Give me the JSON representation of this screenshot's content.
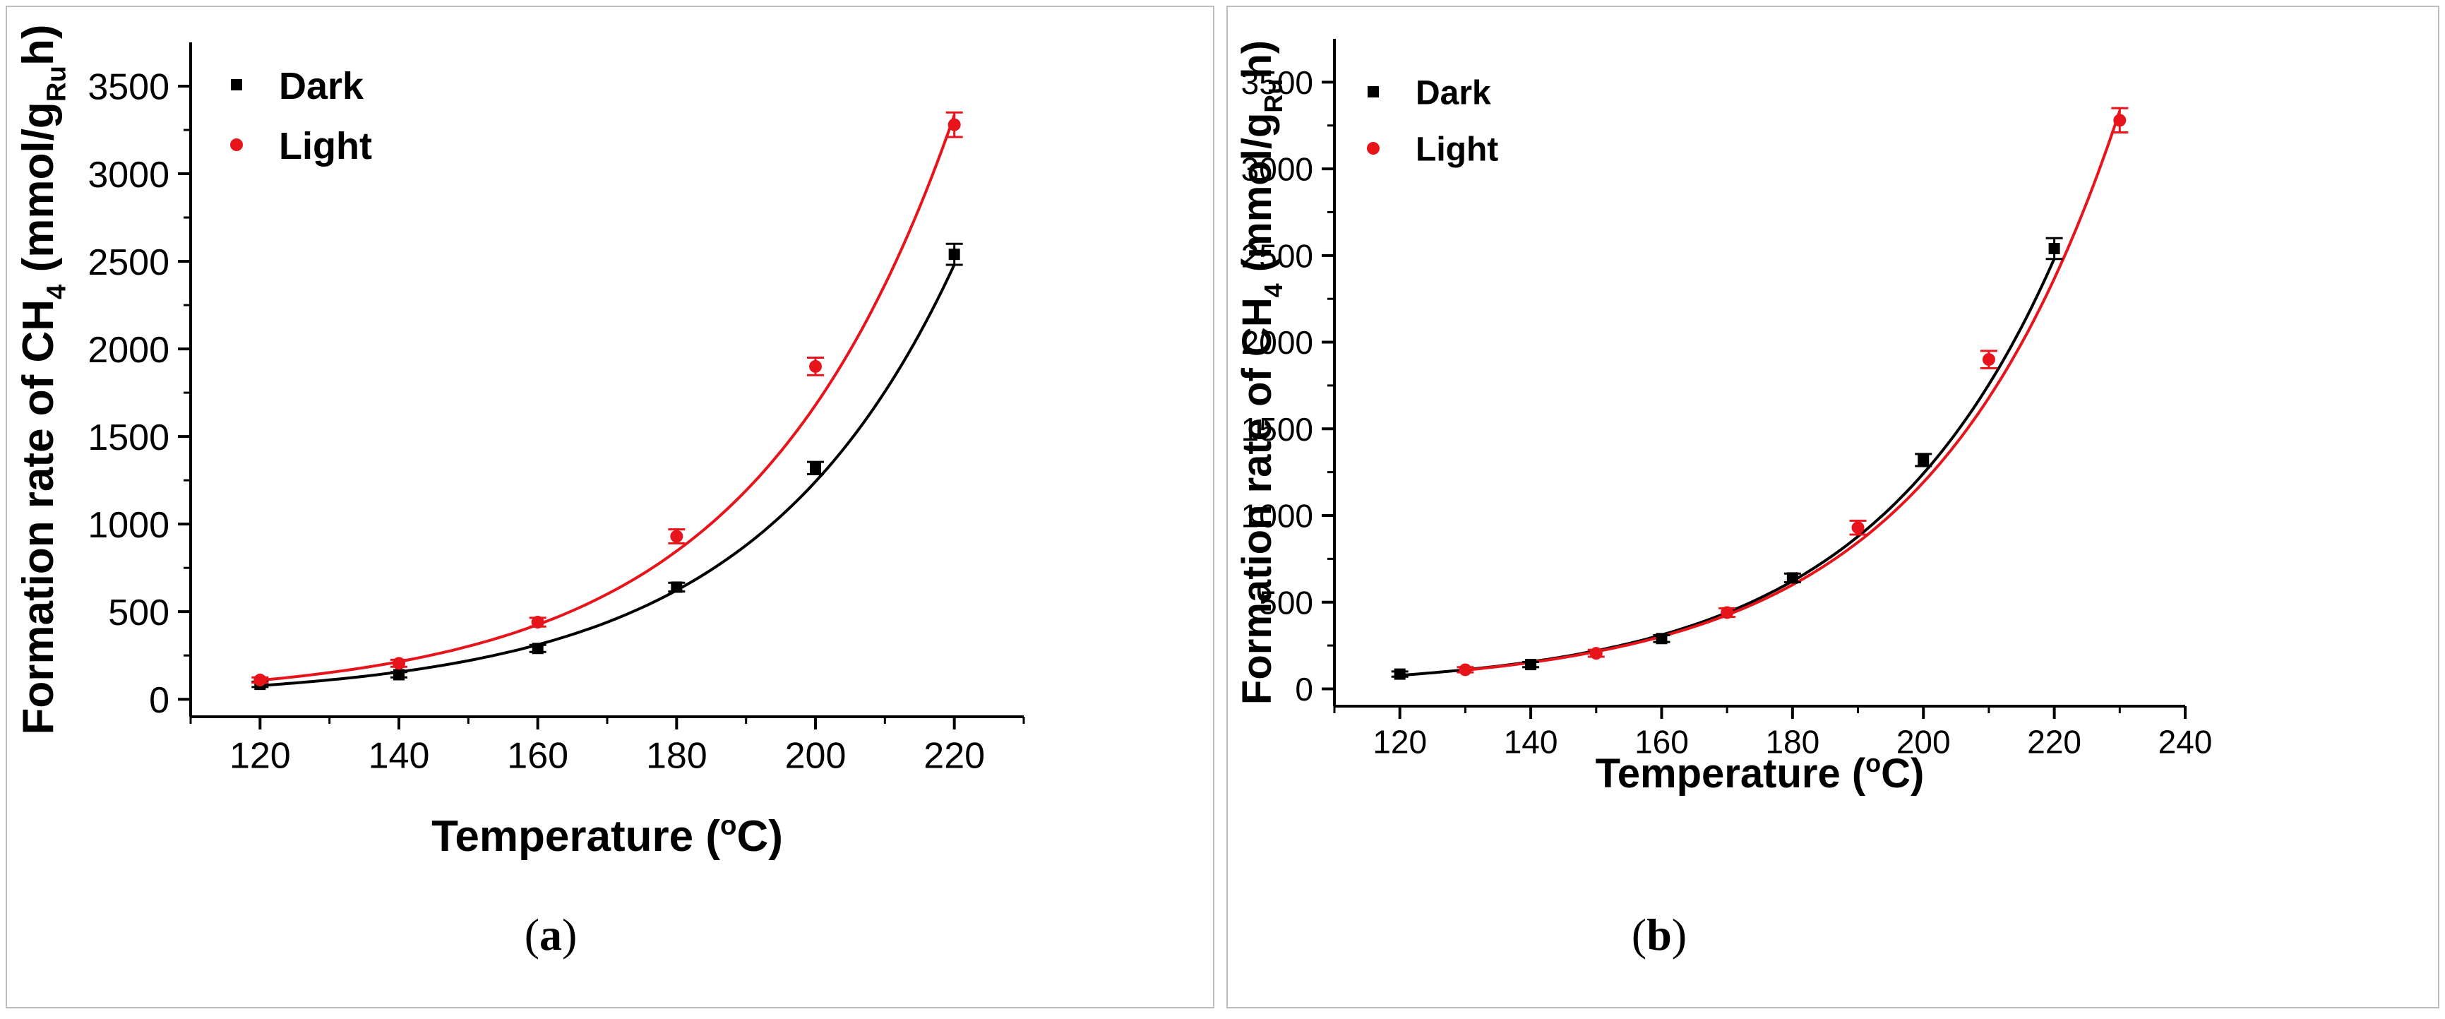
{
  "colors": {
    "dark": "#000000",
    "light": "#e8141b",
    "frame": "#bdbdbd"
  },
  "chart_data": [
    {
      "type": "scatter",
      "panel_label": "(a)",
      "xlabel": "Temperature (",
      "xlabel_sup": "o",
      "xlabel_tail": "C)",
      "ylabel_main": "Formation rate of CH",
      "ylabel_sub4": "4",
      "ylabel_mid": " (mmol/g",
      "ylabel_subRu": "Ru",
      "ylabel_end": "h)",
      "xlim": [
        110,
        230
      ],
      "ylim": [
        -100,
        3750
      ],
      "xticks": [
        120,
        140,
        160,
        180,
        200,
        220
      ],
      "yticks": [
        0,
        500,
        1000,
        1500,
        2000,
        2500,
        3000,
        3500
      ],
      "legend": [
        "Dark",
        "Light"
      ],
      "series": [
        {
          "name": "Dark",
          "x": [
            120,
            140,
            160,
            180,
            200,
            220
          ],
          "y": [
            85,
            140,
            290,
            640,
            1320,
            2540
          ],
          "err": [
            15,
            15,
            20,
            25,
            35,
            60
          ],
          "fit": {
            "a": 78,
            "b": 0.0346,
            "x0": 120,
            "x1": 220
          }
        },
        {
          "name": "Light",
          "x": [
            120,
            140,
            160,
            180,
            200,
            220
          ],
          "y": [
            110,
            205,
            440,
            930,
            1900,
            3280
          ],
          "err": [
            15,
            20,
            25,
            40,
            50,
            70
          ],
          "fit": {
            "a": 108,
            "b": 0.0343,
            "x0": 120,
            "x1": 220
          }
        }
      ]
    },
    {
      "type": "scatter",
      "panel_label": "(b)",
      "xlabel": "Temperature (",
      "xlabel_sup": "o",
      "xlabel_tail": "C)",
      "ylabel_main": "Formation rate of CH",
      "ylabel_sub4": "4",
      "ylabel_mid": " (mmol/g",
      "ylabel_subRu": "Ru",
      "ylabel_end": "h)",
      "xlim": [
        110,
        240
      ],
      "ylim": [
        -100,
        3750
      ],
      "xticks": [
        120,
        140,
        160,
        180,
        200,
        220,
        240
      ],
      "yticks": [
        0,
        500,
        1000,
        1500,
        2000,
        2500,
        3000,
        3500
      ],
      "legend": [
        "Dark",
        "Light"
      ],
      "series": [
        {
          "name": "Dark",
          "x": [
            120,
            140,
            160,
            180,
            200,
            220
          ],
          "y": [
            85,
            140,
            290,
            640,
            1320,
            2540
          ],
          "err": [
            15,
            15,
            20,
            25,
            35,
            60
          ],
          "fit": {
            "a": 78,
            "b": 0.0346,
            "x0": 120,
            "x1": 220
          }
        },
        {
          "name": "Light",
          "x": [
            130,
            150,
            170,
            190,
            210,
            230
          ],
          "y": [
            110,
            205,
            440,
            930,
            1900,
            3280
          ],
          "err": [
            15,
            20,
            25,
            40,
            50,
            70
          ],
          "fit": {
            "a": 108,
            "b": 0.0343,
            "x0": 130,
            "x1": 230
          }
        }
      ]
    }
  ]
}
